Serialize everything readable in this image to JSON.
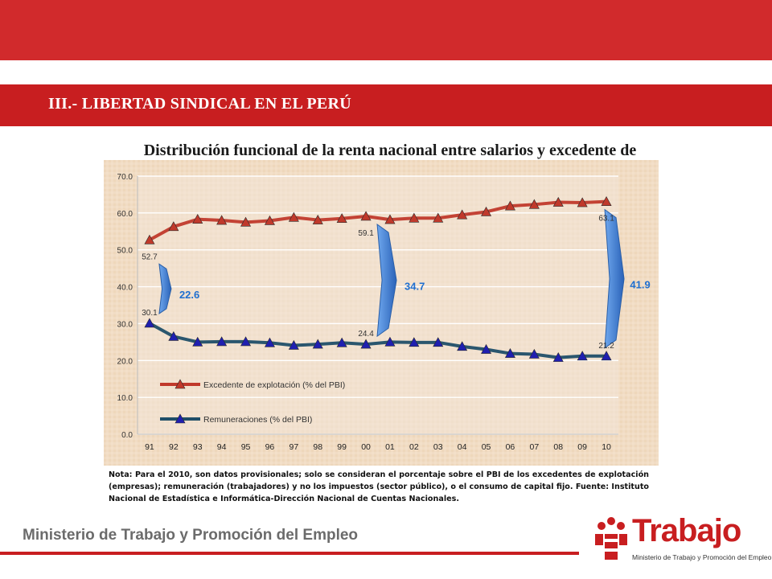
{
  "header": {
    "section_title": "III.- LIBERTAD SINDICAL EN EL PERÚ",
    "chart_title": "Distribución funcional de la renta nacional entre salarios y excedente de"
  },
  "colors": {
    "red_band": "#d12a2c",
    "series_excedente": "#c0392b",
    "series_remuneraciones": "#1f4e68",
    "markers_remuneraciones": "#1f1fb0",
    "arrow": "#3a7bd5",
    "gap_label": "#1f6fd0"
  },
  "chart_data": {
    "type": "line",
    "title": "",
    "xlabel": "",
    "ylabel": "",
    "categories": [
      "91",
      "92",
      "93",
      "94",
      "95",
      "96",
      "97",
      "98",
      "99",
      "00",
      "01",
      "02",
      "03",
      "04",
      "05",
      "06",
      "07",
      "08",
      "09",
      "10"
    ],
    "ylim": [
      0,
      70
    ],
    "yticks": [
      "0.0",
      "10.0",
      "20.0",
      "30.0",
      "40.0",
      "50.0",
      "60.0",
      "70.0"
    ],
    "grid": true,
    "legend_position": "bottom-left",
    "series": [
      {
        "name": "Excedente de explotación (% del PBI)",
        "values": [
          52.7,
          56.3,
          58.3,
          58.0,
          57.5,
          57.9,
          58.8,
          58.1,
          58.5,
          59.1,
          58.2,
          58.6,
          58.6,
          59.5,
          60.3,
          61.9,
          62.3,
          62.9,
          62.8,
          63.1
        ],
        "point_labels": {
          "0": "52.7",
          "9": "59.1",
          "19": "63.1"
        }
      },
      {
        "name": "Remuneraciones (% del PBI)",
        "values": [
          30.1,
          26.5,
          25.0,
          25.1,
          25.1,
          24.8,
          24.1,
          24.4,
          24.8,
          24.4,
          25.0,
          24.9,
          24.9,
          23.8,
          23.0,
          21.9,
          21.7,
          20.8,
          21.2,
          21.2
        ],
        "point_labels": {
          "0": "30.1",
          "9": "24.4",
          "19": "21.2"
        }
      }
    ],
    "annotations": [
      {
        "label": "22.6",
        "category": "91"
      },
      {
        "label": "34.7",
        "category": "00"
      },
      {
        "label": "41.9",
        "category": "10"
      }
    ]
  },
  "note": "Nota: Para el 2010, son datos provisionales; solo se consideran el porcentaje sobre el PBI de los excedentes de explotación (empresas); remuneración (trabajadores) y no los impuestos (sector público), o el consumo de capital fijo. Fuente: Instituto Nacional de Estadística e Informática-Dirección Nacional de Cuentas Nacionales.",
  "footer": {
    "ministry": "Ministerio de Trabajo y Promoción del Empleo",
    "logo_word": "Trabajo",
    "logo_sub": "Ministerio de Trabajo y Promoción del Empleo"
  }
}
